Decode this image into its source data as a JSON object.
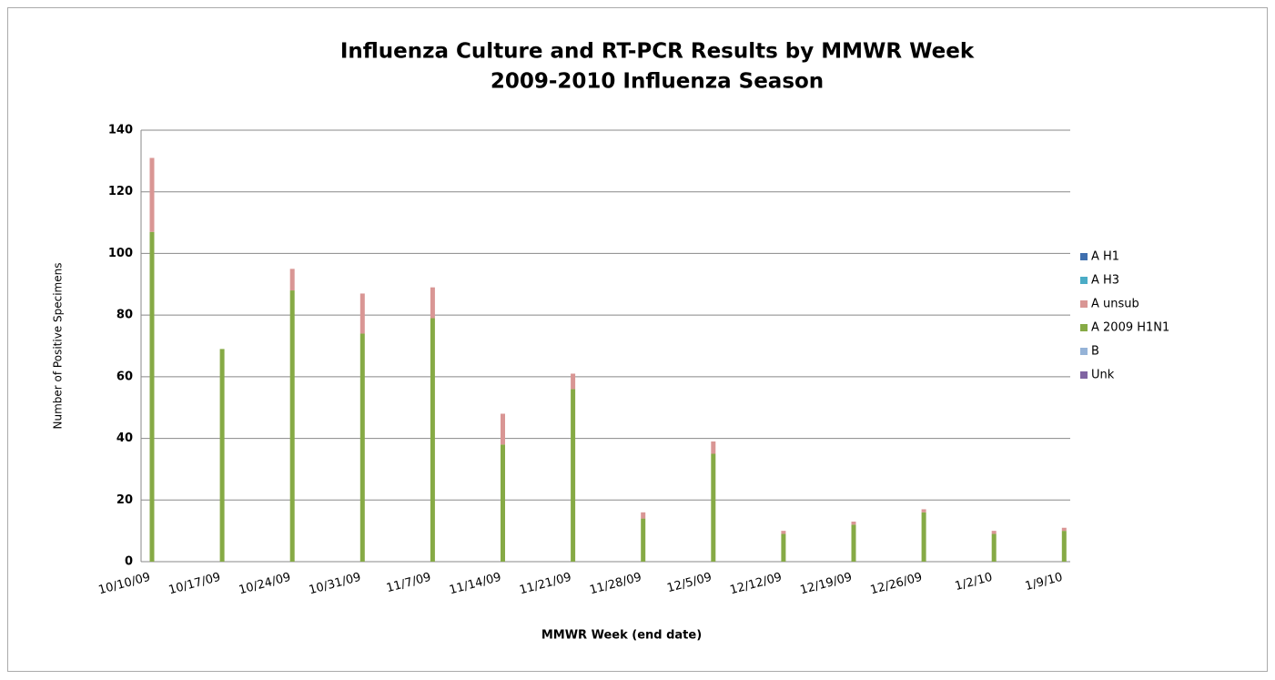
{
  "chart_data": {
    "type": "stacked-bar",
    "title": "Influenza Culture and RT-PCR Results by MMWR Week",
    "subtitle": "2009-2010 Influenza Season",
    "x_label": "MMWR Week (end date)",
    "y_label": "Number of  Positive Specimens",
    "categories": [
      "10/10/09",
      "10/17/09",
      "10/24/09",
      "10/31/09",
      "11/7/09",
      "11/14/09",
      "11/21/09",
      "11/28/09",
      "12/5/09",
      "12/12/09",
      "12/19/09",
      "12/26/09",
      "1/2/10",
      "1/9/10"
    ],
    "series": [
      {
        "name": "A H1",
        "color": "#3f6fae",
        "values": [
          0,
          0,
          0,
          0,
          0,
          0,
          0,
          0,
          0,
          0,
          0,
          0,
          0,
          0
        ]
      },
      {
        "name": "A H3",
        "color": "#4bacc6",
        "values": [
          0,
          0,
          0,
          0,
          0,
          0,
          0,
          0,
          0,
          0,
          0,
          0,
          0,
          0
        ]
      },
      {
        "name": "A unsub",
        "color": "#d99694",
        "values": [
          24,
          0,
          7,
          13,
          10,
          10,
          5,
          2,
          4,
          1,
          1,
          1,
          1,
          1
        ]
      },
      {
        "name": "A 2009 H1N1",
        "color": "#86aa45",
        "values": [
          107,
          69,
          88,
          74,
          79,
          38,
          56,
          14,
          35,
          9,
          12,
          16,
          9,
          10
        ]
      },
      {
        "name": "B",
        "color": "#95b3d7",
        "values": [
          0,
          0,
          0,
          0,
          0,
          0,
          0,
          0,
          0,
          0,
          0,
          0,
          0,
          0
        ]
      },
      {
        "name": "Unk",
        "color": "#8064a2",
        "values": [
          0,
          0,
          0,
          0,
          0,
          0,
          0,
          0,
          0,
          0,
          0,
          0,
          0,
          0
        ]
      }
    ],
    "ylim": [
      0,
      140
    ],
    "yticks": [
      0,
      20,
      40,
      60,
      80,
      100,
      120,
      140
    ],
    "grid": true,
    "legend": "right"
  }
}
